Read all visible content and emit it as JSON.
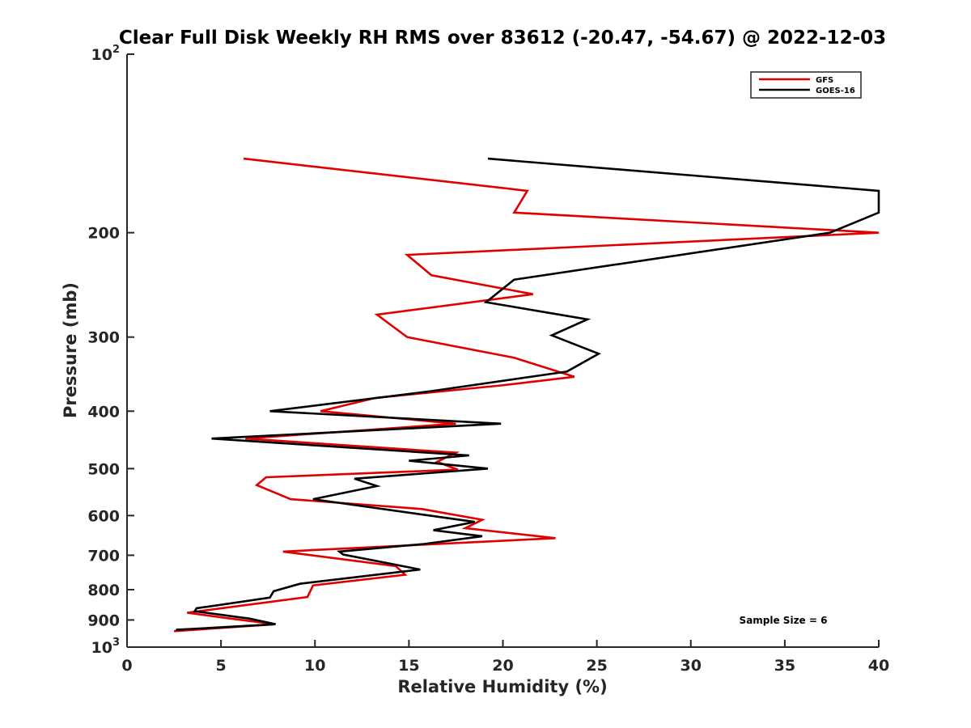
{
  "chart_data": {
    "type": "line",
    "title": "Clear Full Disk Weekly RH RMS over 83612 (-20.47, -54.67) @ 2022-12-03",
    "xlabel": "Relative Humidity (%)",
    "ylabel": "Pressure (mb)",
    "xlim": [
      0,
      40
    ],
    "ylim": [
      1000,
      100
    ],
    "y_scale": "log",
    "y_reversed": true,
    "x_ticks": [
      0,
      5,
      10,
      15,
      20,
      25,
      30,
      35,
      40
    ],
    "x_tick_labels": [
      "0",
      "5",
      "10",
      "15",
      "20",
      "25",
      "30",
      "35",
      "40"
    ],
    "y_ticks": [
      100,
      200,
      300,
      400,
      500,
      600,
      700,
      800,
      900,
      1000
    ],
    "y_tick_labels": [
      {
        "base": "10",
        "exp": "2"
      },
      {
        "base": "200",
        "exp": ""
      },
      {
        "base": "300",
        "exp": ""
      },
      {
        "base": "400",
        "exp": ""
      },
      {
        "base": "500",
        "exp": ""
      },
      {
        "base": "600",
        "exp": ""
      },
      {
        "base": "700",
        "exp": ""
      },
      {
        "base": "800",
        "exp": ""
      },
      {
        "base": "900",
        "exp": ""
      },
      {
        "base": "10",
        "exp": "3"
      }
    ],
    "grid": false,
    "legend_position": "top-right",
    "annotation": "Sample Size = 6",
    "series": [
      {
        "name": "GFS",
        "color": "#e00000",
        "points": [
          [
            6.2,
            150
          ],
          [
            21.3,
            170
          ],
          [
            20.6,
            185
          ],
          [
            40.0,
            200
          ],
          [
            14.9,
            218
          ],
          [
            16.2,
            236
          ],
          [
            21.6,
            254
          ],
          [
            13.3,
            275
          ],
          [
            14.9,
            300
          ],
          [
            20.6,
            325
          ],
          [
            23.8,
            350
          ],
          [
            19.9,
            362
          ],
          [
            13.2,
            380
          ],
          [
            10.3,
            400
          ],
          [
            17.5,
            420
          ],
          [
            6.3,
            445
          ],
          [
            17.5,
            470
          ],
          [
            16.5,
            487
          ],
          [
            17.6,
            502
          ],
          [
            7.4,
            517
          ],
          [
            6.9,
            533
          ],
          [
            8.7,
            563
          ],
          [
            15.7,
            585
          ],
          [
            18.9,
            610
          ],
          [
            18.0,
            630
          ],
          [
            22.8,
            655
          ],
          [
            8.3,
            690
          ],
          [
            14.3,
            730
          ],
          [
            14.8,
            755
          ],
          [
            9.9,
            787
          ],
          [
            9.6,
            823
          ],
          [
            3.2,
            875
          ],
          [
            5.5,
            895
          ],
          [
            7.9,
            915
          ],
          [
            2.5,
            940
          ]
        ]
      },
      {
        "name": "GOES-16",
        "color": "#000000",
        "points": [
          [
            19.2,
            150
          ],
          [
            40.0,
            170
          ],
          [
            40.0,
            185
          ],
          [
            37.4,
            200
          ],
          [
            20.6,
            240
          ],
          [
            19.1,
            262
          ],
          [
            24.5,
            280
          ],
          [
            22.6,
            298
          ],
          [
            25.1,
            320
          ],
          [
            23.4,
            343
          ],
          [
            16.2,
            370
          ],
          [
            7.6,
            400
          ],
          [
            19.9,
            420
          ],
          [
            4.5,
            445
          ],
          [
            18.2,
            475
          ],
          [
            15.0,
            485
          ],
          [
            19.2,
            500
          ],
          [
            12.1,
            520
          ],
          [
            13.3,
            535
          ],
          [
            9.9,
            563
          ],
          [
            18.5,
            615
          ],
          [
            16.3,
            635
          ],
          [
            18.9,
            650
          ],
          [
            15.8,
            670
          ],
          [
            11.3,
            690
          ],
          [
            11.5,
            698
          ],
          [
            15.6,
            740
          ],
          [
            9.2,
            782
          ],
          [
            7.8,
            805
          ],
          [
            7.6,
            825
          ],
          [
            3.7,
            860
          ],
          [
            3.6,
            870
          ],
          [
            6.5,
            895
          ],
          [
            7.9,
            915
          ],
          [
            2.6,
            935
          ]
        ]
      }
    ]
  }
}
